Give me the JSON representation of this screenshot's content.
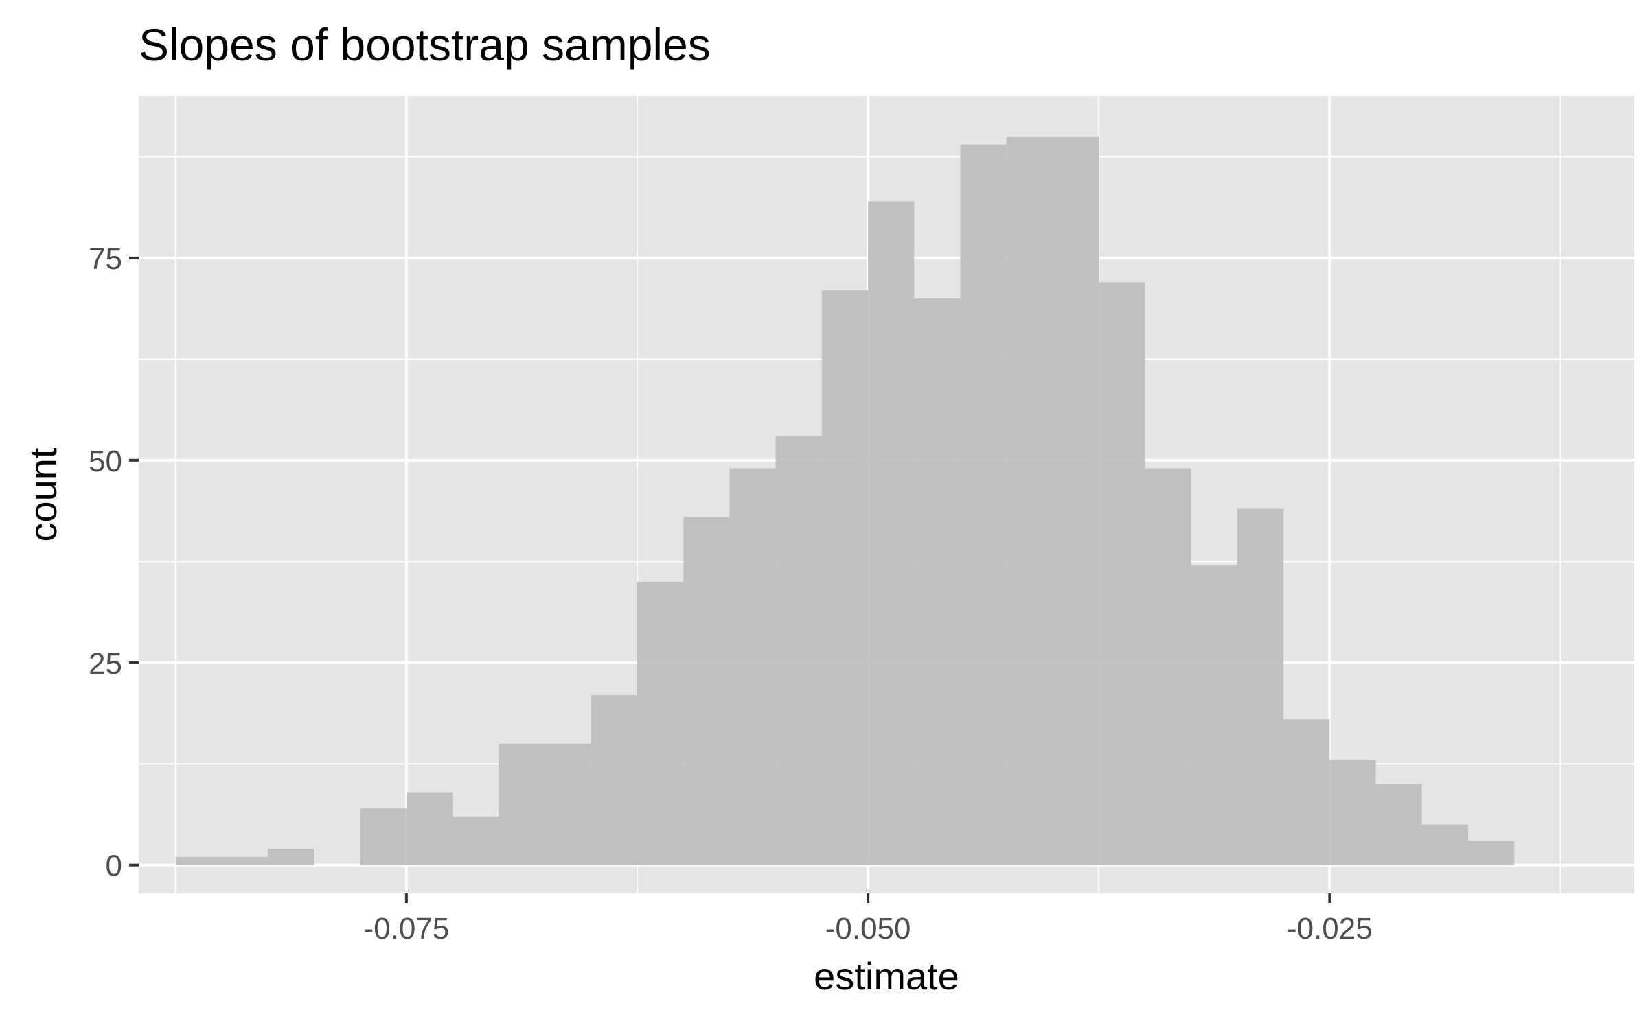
{
  "chart_data": {
    "type": "bar",
    "subtype": "histogram",
    "title": "Slopes of bootstrap samples",
    "xlabel": "estimate",
    "ylabel": "count",
    "xlim": [
      -0.0895,
      -0.0085
    ],
    "ylim": [
      -3.5,
      95
    ],
    "x_ticks": [
      -0.075,
      -0.05,
      -0.025
    ],
    "x_tick_labels": [
      "-0.075",
      "-0.050",
      "-0.025"
    ],
    "y_ticks": [
      0,
      25,
      50,
      75
    ],
    "y_tick_labels": [
      "0",
      "25",
      "50",
      "75"
    ],
    "grid": true,
    "legend": "none",
    "bin_width": 0.0025,
    "bins": [
      {
        "x0": -0.0875,
        "x1": -0.085,
        "count": 1
      },
      {
        "x0": -0.085,
        "x1": -0.0825,
        "count": 1
      },
      {
        "x0": -0.0825,
        "x1": -0.08,
        "count": 2
      },
      {
        "x0": -0.08,
        "x1": -0.0775,
        "count": 0
      },
      {
        "x0": -0.0775,
        "x1": -0.075,
        "count": 7
      },
      {
        "x0": -0.075,
        "x1": -0.0725,
        "count": 9
      },
      {
        "x0": -0.0725,
        "x1": -0.07,
        "count": 6
      },
      {
        "x0": -0.07,
        "x1": -0.0675,
        "count": 15
      },
      {
        "x0": -0.0675,
        "x1": -0.065,
        "count": 15
      },
      {
        "x0": -0.065,
        "x1": -0.0625,
        "count": 21
      },
      {
        "x0": -0.0625,
        "x1": -0.06,
        "count": 35
      },
      {
        "x0": -0.06,
        "x1": -0.0575,
        "count": 43
      },
      {
        "x0": -0.0575,
        "x1": -0.055,
        "count": 49
      },
      {
        "x0": -0.055,
        "x1": -0.0525,
        "count": 53
      },
      {
        "x0": -0.0525,
        "x1": -0.05,
        "count": 71
      },
      {
        "x0": -0.05,
        "x1": -0.0475,
        "count": 82
      },
      {
        "x0": -0.0475,
        "x1": -0.045,
        "count": 70
      },
      {
        "x0": -0.045,
        "x1": -0.0425,
        "count": 89
      },
      {
        "x0": -0.0425,
        "x1": -0.04,
        "count": 90
      },
      {
        "x0": -0.04,
        "x1": -0.0375,
        "count": 90
      },
      {
        "x0": -0.0375,
        "x1": -0.035,
        "count": 72
      },
      {
        "x0": -0.035,
        "x1": -0.0325,
        "count": 49
      },
      {
        "x0": -0.0325,
        "x1": -0.03,
        "count": 37
      },
      {
        "x0": -0.03,
        "x1": -0.0275,
        "count": 44
      },
      {
        "x0": -0.0275,
        "x1": -0.025,
        "count": 18
      },
      {
        "x0": -0.025,
        "x1": -0.0225,
        "count": 13
      },
      {
        "x0": -0.0225,
        "x1": -0.02,
        "count": 10
      },
      {
        "x0": -0.02,
        "x1": -0.0175,
        "count": 5
      },
      {
        "x0": -0.0175,
        "x1": -0.015,
        "count": 3
      }
    ],
    "colors": {
      "panel_background": "#e5e5e5",
      "grid": "#ffffff",
      "bar_fill": "#bdbdbd",
      "axis_text": "#4d4d4d",
      "title_text": "#000000",
      "tick_mark": "#333333"
    }
  }
}
